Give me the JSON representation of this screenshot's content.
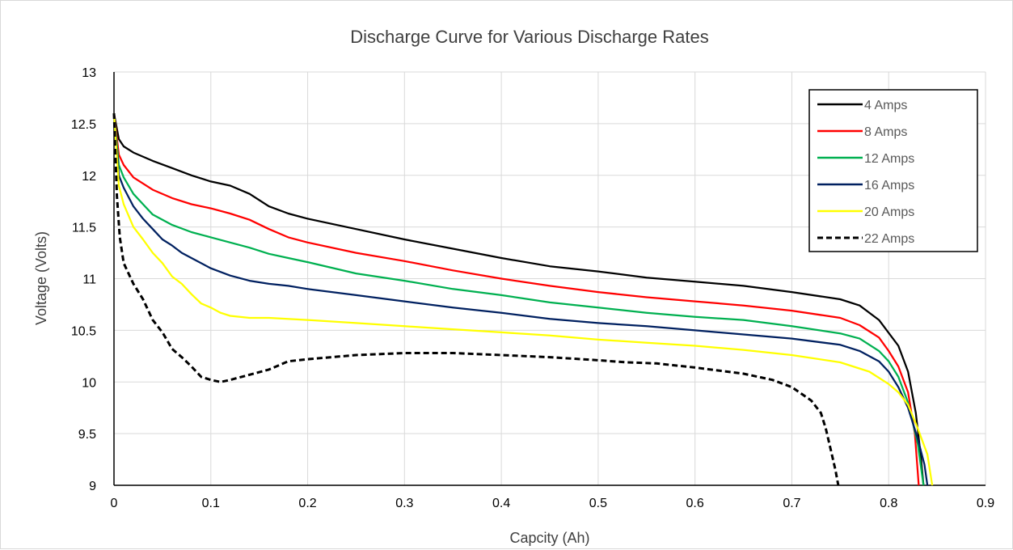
{
  "chart_data": {
    "type": "line",
    "title": "Discharge Curve for Various Discharge Rates",
    "xlabel": "Capcity (Ah)",
    "ylabel": "Voltage (Volts)",
    "xlim": [
      0,
      0.9
    ],
    "ylim": [
      9,
      13
    ],
    "x_ticks": [
      "0",
      "0.1",
      "0.2",
      "0.3",
      "0.4",
      "0.5",
      "0.6",
      "0.7",
      "0.8",
      "0.9"
    ],
    "y_ticks": [
      "9",
      "9.5",
      "10",
      "10.5",
      "11",
      "11.5",
      "12",
      "12.5",
      "13"
    ],
    "grid": true,
    "legend_position": "top-right",
    "series": [
      {
        "name": "4 Amps",
        "color": "#000000",
        "dash": false,
        "points": [
          [
            0,
            12.6
          ],
          [
            0.005,
            12.35
          ],
          [
            0.01,
            12.28
          ],
          [
            0.02,
            12.22
          ],
          [
            0.04,
            12.14
          ],
          [
            0.06,
            12.07
          ],
          [
            0.08,
            12.0
          ],
          [
            0.1,
            11.94
          ],
          [
            0.12,
            11.9
          ],
          [
            0.14,
            11.82
          ],
          [
            0.16,
            11.7
          ],
          [
            0.18,
            11.63
          ],
          [
            0.2,
            11.58
          ],
          [
            0.25,
            11.48
          ],
          [
            0.3,
            11.38
          ],
          [
            0.35,
            11.29
          ],
          [
            0.4,
            11.2
          ],
          [
            0.45,
            11.12
          ],
          [
            0.5,
            11.07
          ],
          [
            0.55,
            11.01
          ],
          [
            0.6,
            10.97
          ],
          [
            0.65,
            10.93
          ],
          [
            0.7,
            10.87
          ],
          [
            0.75,
            10.8
          ],
          [
            0.77,
            10.74
          ],
          [
            0.79,
            10.6
          ],
          [
            0.81,
            10.35
          ],
          [
            0.82,
            10.1
          ],
          [
            0.828,
            9.7
          ],
          [
            0.833,
            9.3
          ],
          [
            0.836,
            9.0
          ]
        ]
      },
      {
        "name": "8 Amps",
        "color": "#ff0000",
        "dash": false,
        "points": [
          [
            0,
            12.6
          ],
          [
            0.005,
            12.2
          ],
          [
            0.01,
            12.1
          ],
          [
            0.02,
            11.98
          ],
          [
            0.04,
            11.86
          ],
          [
            0.06,
            11.78
          ],
          [
            0.08,
            11.72
          ],
          [
            0.1,
            11.68
          ],
          [
            0.12,
            11.63
          ],
          [
            0.14,
            11.57
          ],
          [
            0.16,
            11.48
          ],
          [
            0.18,
            11.4
          ],
          [
            0.2,
            11.35
          ],
          [
            0.25,
            11.25
          ],
          [
            0.3,
            11.17
          ],
          [
            0.35,
            11.08
          ],
          [
            0.4,
            11.0
          ],
          [
            0.45,
            10.93
          ],
          [
            0.5,
            10.87
          ],
          [
            0.55,
            10.82
          ],
          [
            0.6,
            10.78
          ],
          [
            0.65,
            10.74
          ],
          [
            0.7,
            10.69
          ],
          [
            0.75,
            10.62
          ],
          [
            0.77,
            10.55
          ],
          [
            0.79,
            10.43
          ],
          [
            0.8,
            10.3
          ],
          [
            0.81,
            10.15
          ],
          [
            0.82,
            9.9
          ],
          [
            0.827,
            9.5
          ],
          [
            0.831,
            9.0
          ]
        ]
      },
      {
        "name": "12 Amps",
        "color": "#00b050",
        "dash": false,
        "points": [
          [
            0,
            12.6
          ],
          [
            0.005,
            12.1
          ],
          [
            0.01,
            11.98
          ],
          [
            0.02,
            11.82
          ],
          [
            0.03,
            11.72
          ],
          [
            0.04,
            11.62
          ],
          [
            0.06,
            11.52
          ],
          [
            0.08,
            11.45
          ],
          [
            0.1,
            11.4
          ],
          [
            0.12,
            11.35
          ],
          [
            0.14,
            11.3
          ],
          [
            0.16,
            11.24
          ],
          [
            0.18,
            11.2
          ],
          [
            0.2,
            11.16
          ],
          [
            0.25,
            11.05
          ],
          [
            0.3,
            10.98
          ],
          [
            0.35,
            10.9
          ],
          [
            0.4,
            10.84
          ],
          [
            0.45,
            10.77
          ],
          [
            0.5,
            10.72
          ],
          [
            0.55,
            10.67
          ],
          [
            0.6,
            10.63
          ],
          [
            0.65,
            10.6
          ],
          [
            0.7,
            10.54
          ],
          [
            0.75,
            10.47
          ],
          [
            0.77,
            10.42
          ],
          [
            0.79,
            10.3
          ],
          [
            0.8,
            10.2
          ],
          [
            0.81,
            10.05
          ],
          [
            0.82,
            9.8
          ],
          [
            0.83,
            9.4
          ],
          [
            0.836,
            9.0
          ]
        ]
      },
      {
        "name": "16 Amps",
        "color": "#002060",
        "dash": false,
        "points": [
          [
            0,
            12.6
          ],
          [
            0.005,
            12.0
          ],
          [
            0.01,
            11.88
          ],
          [
            0.02,
            11.7
          ],
          [
            0.03,
            11.58
          ],
          [
            0.04,
            11.48
          ],
          [
            0.05,
            11.38
          ],
          [
            0.06,
            11.32
          ],
          [
            0.07,
            11.25
          ],
          [
            0.08,
            11.2
          ],
          [
            0.1,
            11.1
          ],
          [
            0.12,
            11.03
          ],
          [
            0.14,
            10.98
          ],
          [
            0.16,
            10.95
          ],
          [
            0.18,
            10.93
          ],
          [
            0.2,
            10.9
          ],
          [
            0.25,
            10.84
          ],
          [
            0.3,
            10.78
          ],
          [
            0.35,
            10.72
          ],
          [
            0.4,
            10.67
          ],
          [
            0.45,
            10.61
          ],
          [
            0.5,
            10.57
          ],
          [
            0.55,
            10.54
          ],
          [
            0.6,
            10.5
          ],
          [
            0.65,
            10.46
          ],
          [
            0.7,
            10.42
          ],
          [
            0.75,
            10.36
          ],
          [
            0.77,
            10.3
          ],
          [
            0.79,
            10.2
          ],
          [
            0.8,
            10.1
          ],
          [
            0.81,
            9.95
          ],
          [
            0.82,
            9.75
          ],
          [
            0.83,
            9.45
          ],
          [
            0.837,
            9.2
          ],
          [
            0.84,
            9.0
          ]
        ]
      },
      {
        "name": "20 Amps",
        "color": "#ffff00",
        "dash": false,
        "points": [
          [
            0,
            12.6
          ],
          [
            0.005,
            11.9
          ],
          [
            0.01,
            11.72
          ],
          [
            0.02,
            11.5
          ],
          [
            0.03,
            11.38
          ],
          [
            0.04,
            11.25
          ],
          [
            0.05,
            11.15
          ],
          [
            0.06,
            11.02
          ],
          [
            0.07,
            10.95
          ],
          [
            0.08,
            10.85
          ],
          [
            0.09,
            10.76
          ],
          [
            0.1,
            10.72
          ],
          [
            0.11,
            10.67
          ],
          [
            0.12,
            10.64
          ],
          [
            0.14,
            10.62
          ],
          [
            0.16,
            10.62
          ],
          [
            0.2,
            10.6
          ],
          [
            0.25,
            10.57
          ],
          [
            0.3,
            10.54
          ],
          [
            0.35,
            10.51
          ],
          [
            0.4,
            10.48
          ],
          [
            0.45,
            10.45
          ],
          [
            0.5,
            10.41
          ],
          [
            0.55,
            10.38
          ],
          [
            0.6,
            10.35
          ],
          [
            0.65,
            10.31
          ],
          [
            0.7,
            10.26
          ],
          [
            0.75,
            10.19
          ],
          [
            0.78,
            10.1
          ],
          [
            0.8,
            9.98
          ],
          [
            0.81,
            9.9
          ],
          [
            0.82,
            9.78
          ],
          [
            0.83,
            9.55
          ],
          [
            0.84,
            9.3
          ],
          [
            0.845,
            9.0
          ]
        ]
      },
      {
        "name": "22 Amps",
        "color": "#000000",
        "dash": true,
        "points": [
          [
            0,
            12.6
          ],
          [
            0.003,
            11.8
          ],
          [
            0.006,
            11.4
          ],
          [
            0.01,
            11.15
          ],
          [
            0.015,
            11.05
          ],
          [
            0.02,
            10.95
          ],
          [
            0.03,
            10.8
          ],
          [
            0.04,
            10.6
          ],
          [
            0.05,
            10.48
          ],
          [
            0.06,
            10.32
          ],
          [
            0.07,
            10.24
          ],
          [
            0.08,
            10.15
          ],
          [
            0.09,
            10.05
          ],
          [
            0.1,
            10.02
          ],
          [
            0.11,
            10.0
          ],
          [
            0.12,
            10.02
          ],
          [
            0.14,
            10.07
          ],
          [
            0.16,
            10.12
          ],
          [
            0.18,
            10.2
          ],
          [
            0.2,
            10.22
          ],
          [
            0.25,
            10.26
          ],
          [
            0.3,
            10.28
          ],
          [
            0.35,
            10.28
          ],
          [
            0.4,
            10.26
          ],
          [
            0.45,
            10.24
          ],
          [
            0.5,
            10.21
          ],
          [
            0.53,
            10.19
          ],
          [
            0.56,
            10.18
          ],
          [
            0.6,
            10.14
          ],
          [
            0.65,
            10.08
          ],
          [
            0.68,
            10.02
          ],
          [
            0.7,
            9.95
          ],
          [
            0.72,
            9.82
          ],
          [
            0.73,
            9.7
          ],
          [
            0.735,
            9.55
          ],
          [
            0.74,
            9.35
          ],
          [
            0.745,
            9.15
          ],
          [
            0.748,
            9.0
          ]
        ]
      }
    ]
  }
}
